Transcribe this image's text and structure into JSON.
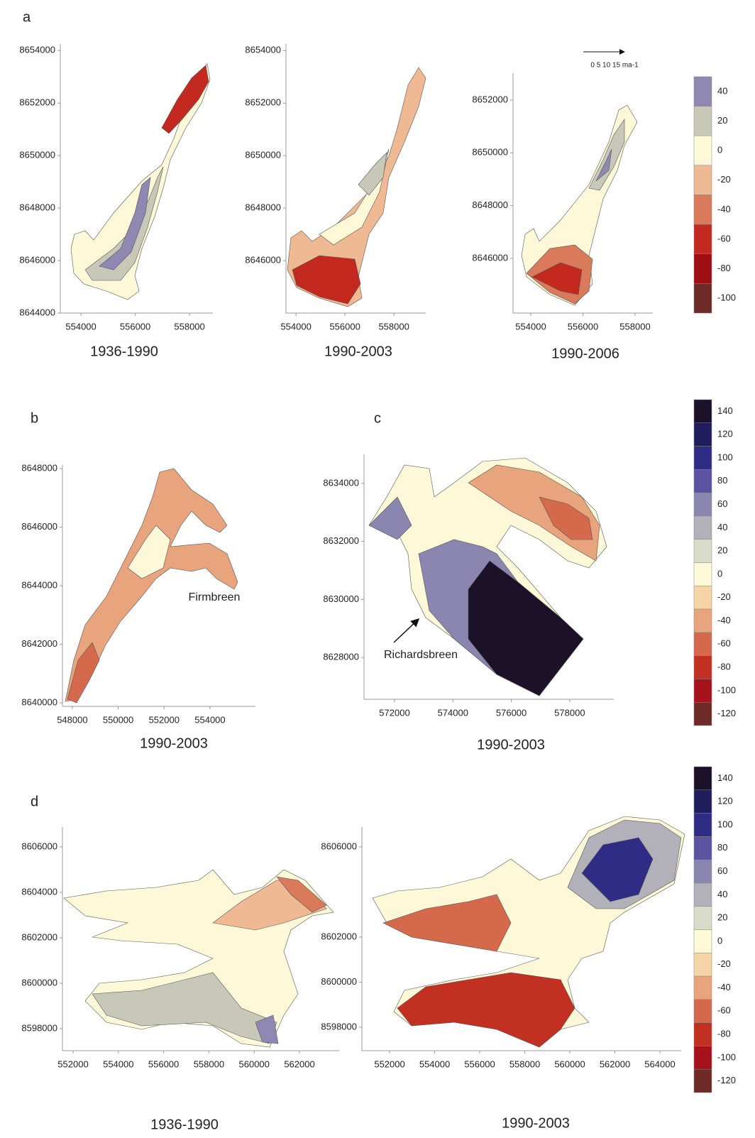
{
  "figure": {
    "panel_labels": [
      "a",
      "b",
      "c",
      "d"
    ],
    "maps": [
      {
        "caption": "1936-1990",
        "xlim": [
          553240,
          558860
        ],
        "ylim": [
          8644000,
          8654250
        ],
        "xticks": [
          554000,
          556000,
          558000
        ],
        "yticks": [
          8644000,
          8646000,
          8648000,
          8650000,
          8652000,
          8654000
        ]
      },
      {
        "caption": "1990-2003",
        "xlim": [
          553590,
          559300
        ],
        "ylim": [
          8644000,
          8654250
        ],
        "xticks": [
          554000,
          556000,
          558000
        ],
        "yticks": [
          8646000,
          8648000,
          8650000,
          8652000,
          8654000
        ]
      },
      {
        "caption": "1990-2006",
        "xlim": [
          553320,
          558680
        ],
        "ylim": [
          8643930,
          8653020
        ],
        "xticks": [
          554000,
          556000,
          558000
        ],
        "yticks": [
          8646000,
          8648000,
          8650000,
          8652000
        ]
      },
      {
        "caption": "1990-2003",
        "xlim": [
          547570,
          555980
        ],
        "ylim": [
          8639880,
          8648120
        ],
        "xticks": [
          548000,
          550000,
          552000,
          554000
        ],
        "yticks": [
          8640000,
          8642000,
          8644000,
          8646000,
          8648000
        ]
      },
      {
        "caption": "1990-2003",
        "xlim": [
          570955,
          579510
        ],
        "ylim": [
          8626560,
          8635000
        ],
        "xticks": [
          572000,
          574000,
          576000,
          578000
        ],
        "yticks": [
          8628000,
          8630000,
          8632000,
          8634000
        ]
      },
      {
        "caption": "1936-1990",
        "xlim": [
          551530,
          563755
        ],
        "ylim": [
          8597030,
          8606875
        ],
        "xticks": [
          552000,
          554000,
          556000,
          558000,
          560000,
          562000
        ],
        "yticks": [
          8598000,
          8600000,
          8602000,
          8604000,
          8606000
        ]
      },
      {
        "caption": "1990-2003",
        "xlim": [
          550770,
          564945
        ],
        "ylim": [
          8596960,
          8606880
        ],
        "xticks": [
          552000,
          554000,
          556000,
          558000,
          560000,
          562000,
          564000
        ],
        "yticks": [
          8598000,
          8600000,
          8602000,
          8606000
        ]
      }
    ],
    "colorbars": [
      {
        "levels": [
          40,
          20,
          0,
          -20,
          -40,
          -60,
          -80,
          -100
        ],
        "colors": [
          "#8e88b3",
          "#c8c8b8",
          "#fdf8d8",
          "#efb994",
          "#d97a5a",
          "#c4291f",
          "#9e0f14",
          "#6e2a26"
        ]
      },
      {
        "levels": [
          140,
          120,
          100,
          80,
          60,
          40,
          20,
          0,
          -20,
          -40,
          -60,
          -80,
          -100,
          -120
        ],
        "colors": [
          "#1c1128",
          "#201d5c",
          "#2e2c85",
          "#5b53a0",
          "#8a86b0",
          "#b2b0b8",
          "#d9dcc8",
          "#fdf8d8",
          "#f6d4a8",
          "#e8a47c",
          "#d4694c",
          "#c23021",
          "#a8121a",
          "#6e2a26"
        ]
      },
      {
        "levels": [
          140,
          120,
          100,
          80,
          60,
          40,
          20,
          0,
          -20,
          -40,
          -60,
          -80,
          -100,
          -120
        ],
        "colors": [
          "#1c1128",
          "#201d5c",
          "#2e2c85",
          "#5b53a0",
          "#8a86b0",
          "#b2b0b8",
          "#d9dcc8",
          "#fdf8d8",
          "#f6d4a8",
          "#e8a47c",
          "#d4694c",
          "#c23021",
          "#a8121a",
          "#6e2a26"
        ]
      }
    ],
    "annotations": {
      "scale": "0  5  10  15 ma-1",
      "firmbreen": "Firmbreen",
      "richardsbreen": "Richardsbreen"
    }
  }
}
